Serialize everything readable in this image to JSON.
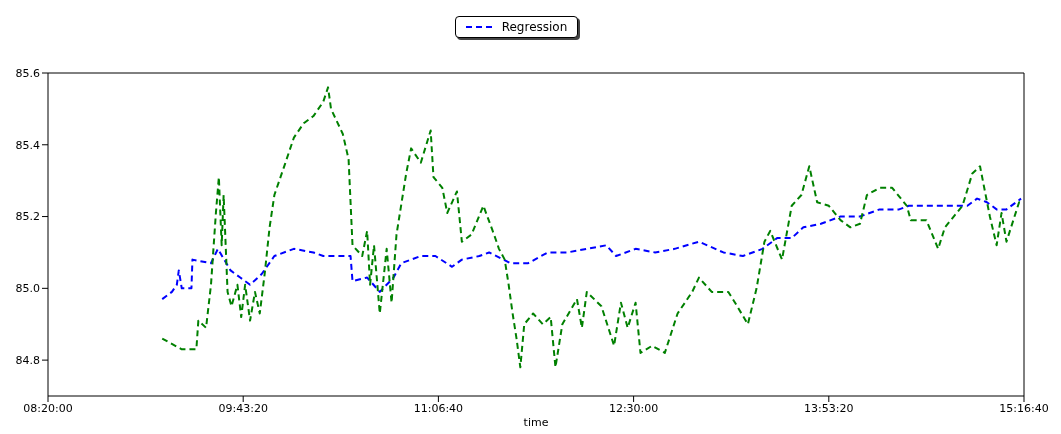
{
  "chart_data": {
    "type": "line",
    "xlabel": "time",
    "legend": "top",
    "line_style": "dashed",
    "marker": "none",
    "grid": false,
    "xlim": [
      8.3333,
      15.2778
    ],
    "xticks": [
      {
        "value": 8.3333,
        "label": "08:20:00"
      },
      {
        "value": 9.7222,
        "label": "09:43:20"
      },
      {
        "value": 11.1111,
        "label": "11:06:40"
      },
      {
        "value": 12.5,
        "label": "12:30:00"
      },
      {
        "value": 13.8889,
        "label": "13:53:20"
      },
      {
        "value": 15.2778,
        "label": "15:16:40"
      }
    ],
    "ylim": [
      84.7,
      85.6
    ],
    "yticks": [
      {
        "value": 84.8,
        "label": "84.8"
      },
      {
        "value": 85.0,
        "label": "85.0"
      },
      {
        "value": 85.2,
        "label": "85.2"
      },
      {
        "value": 85.4,
        "label": "85.4"
      },
      {
        "value": 85.6,
        "label": "85.6"
      }
    ],
    "series": [
      {
        "name": "Regression",
        "color": "#0000ff",
        "x": [
          9.146,
          9.215,
          9.25,
          9.264,
          9.285,
          9.354,
          9.361,
          9.493,
          9.542,
          9.632,
          9.701,
          9.771,
          9.854,
          9.944,
          10.083,
          10.222,
          10.292,
          10.486,
          10.5,
          10.604,
          10.694,
          10.792,
          10.847,
          10.986,
          11.09,
          11.208,
          11.278,
          11.403,
          11.472,
          11.625,
          11.75,
          11.889,
          12.028,
          12.167,
          12.306,
          12.375,
          12.514,
          12.653,
          12.792,
          12.965,
          13.139,
          13.278,
          13.417,
          13.521,
          13.625,
          13.708,
          13.833,
          13.972,
          14.111,
          14.25,
          14.389,
          14.458,
          14.597,
          14.736,
          14.875,
          14.944,
          15.014,
          15.083,
          15.153,
          15.222,
          15.257
        ],
        "values": [
          84.97,
          84.99,
          85.01,
          85.05,
          85.0,
          85.0,
          85.08,
          85.07,
          85.11,
          85.05,
          85.03,
          85.01,
          85.04,
          85.09,
          85.11,
          85.1,
          85.09,
          85.09,
          85.02,
          85.03,
          84.99,
          85.03,
          85.07,
          85.09,
          85.09,
          85.06,
          85.08,
          85.09,
          85.1,
          85.07,
          85.07,
          85.1,
          85.1,
          85.11,
          85.12,
          85.09,
          85.11,
          85.1,
          85.11,
          85.13,
          85.1,
          85.09,
          85.11,
          85.14,
          85.14,
          85.17,
          85.18,
          85.2,
          85.2,
          85.22,
          85.22,
          85.23,
          85.23,
          85.23,
          85.23,
          85.25,
          85.24,
          85.22,
          85.22,
          85.24,
          85.25
        ]
      },
      {
        "color": "#008000",
        "x": [
          9.146,
          9.285,
          9.389,
          9.403,
          9.458,
          9.493,
          9.528,
          9.549,
          9.569,
          9.583,
          9.611,
          9.639,
          9.681,
          9.708,
          9.736,
          9.771,
          9.806,
          9.84,
          9.875,
          9.91,
          9.944,
          10.014,
          10.083,
          10.153,
          10.222,
          10.292,
          10.326,
          10.347,
          10.431,
          10.472,
          10.5,
          10.569,
          10.604,
          10.625,
          10.653,
          10.694,
          10.743,
          10.778,
          10.813,
          10.882,
          10.917,
          10.986,
          11.056,
          11.076,
          11.139,
          11.174,
          11.243,
          11.278,
          11.347,
          11.431,
          11.507,
          11.542,
          11.583,
          11.611,
          11.639,
          11.667,
          11.694,
          11.722,
          11.785,
          11.854,
          11.91,
          11.944,
          11.993,
          12.097,
          12.132,
          12.167,
          12.271,
          12.361,
          12.41,
          12.458,
          12.514,
          12.549,
          12.632,
          12.722,
          12.813,
          12.917,
          12.965,
          13.056,
          13.174,
          13.222,
          13.313,
          13.375,
          13.431,
          13.472,
          13.556,
          13.625,
          13.694,
          13.75,
          13.806,
          13.889,
          13.972,
          14.042,
          14.111,
          14.16,
          14.25,
          14.34,
          14.444,
          14.472,
          14.583,
          14.667,
          14.715,
          14.84,
          14.91,
          14.965,
          15.035,
          15.083,
          15.118,
          15.153,
          15.243,
          15.264
        ],
        "values": [
          84.86,
          84.83,
          84.83,
          84.91,
          84.89,
          85.01,
          85.21,
          85.31,
          85.12,
          85.26,
          84.99,
          84.95,
          85.01,
          84.92,
          85.01,
          84.91,
          84.99,
          84.93,
          85.04,
          85.17,
          85.26,
          85.34,
          85.42,
          85.46,
          85.48,
          85.52,
          85.56,
          85.5,
          85.43,
          85.36,
          85.12,
          85.09,
          85.16,
          85.01,
          85.12,
          84.93,
          85.11,
          84.96,
          85.15,
          85.32,
          85.39,
          85.35,
          85.44,
          85.31,
          85.28,
          85.21,
          85.27,
          85.13,
          85.15,
          85.23,
          85.15,
          85.11,
          85.08,
          85.01,
          84.93,
          84.86,
          84.78,
          84.9,
          84.93,
          84.9,
          84.92,
          84.78,
          84.9,
          84.97,
          84.89,
          84.99,
          84.95,
          84.84,
          84.96,
          84.89,
          84.96,
          84.82,
          84.84,
          84.82,
          84.93,
          84.99,
          85.03,
          84.99,
          84.99,
          84.96,
          84.9,
          85.0,
          85.13,
          85.16,
          85.08,
          85.23,
          85.26,
          85.34,
          85.24,
          85.23,
          85.19,
          85.17,
          85.18,
          85.26,
          85.28,
          85.28,
          85.23,
          85.19,
          85.19,
          85.11,
          85.17,
          85.23,
          85.32,
          85.34,
          85.2,
          85.12,
          85.21,
          85.13,
          85.24,
          85.23
        ]
      }
    ]
  }
}
